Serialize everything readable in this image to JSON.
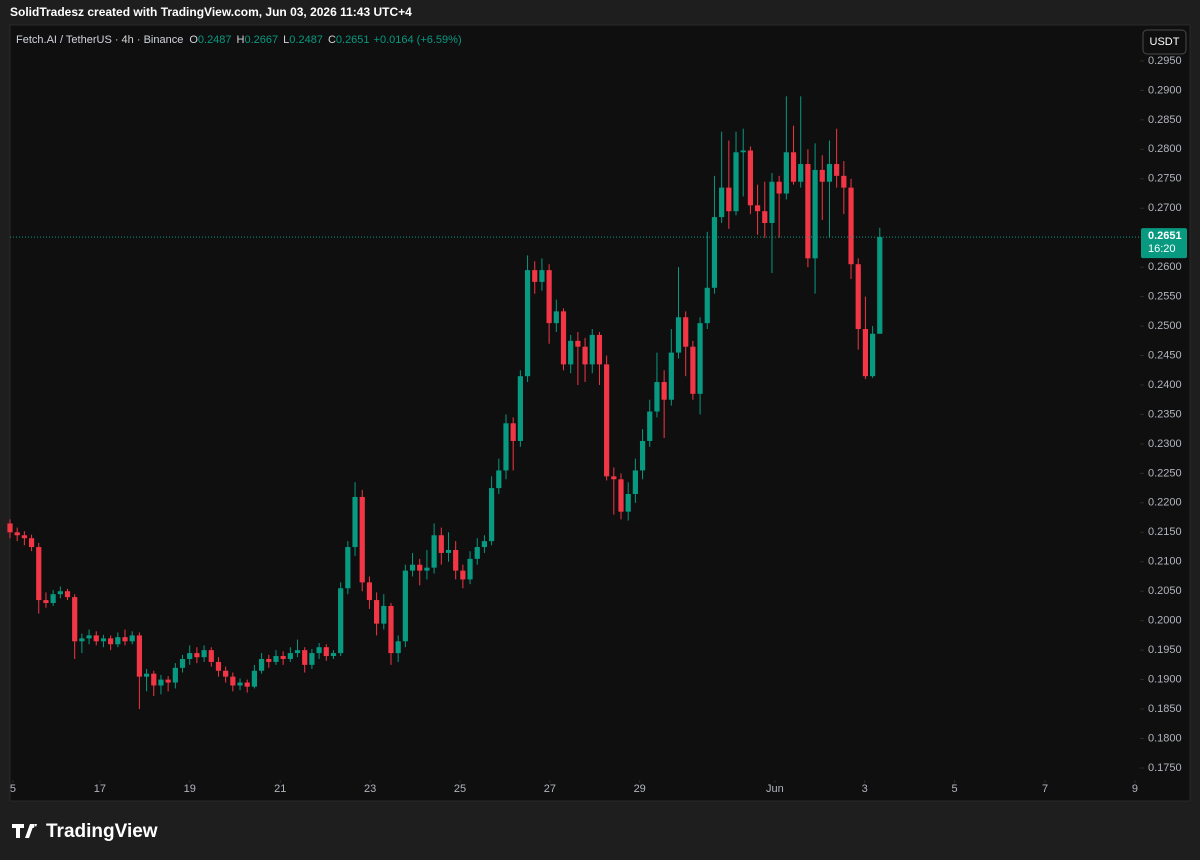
{
  "header": "SolidTradesz created with TradingView.com, Jun 03, 2026 11:43 UTC+4",
  "brand": "TradingView",
  "chart_data": {
    "type": "candlestick",
    "title": "Fetch.AI / TetherUS · 4h · Binance",
    "ohlc_legend": [
      {
        "key": "O",
        "value": 0.2487
      },
      {
        "key": "H",
        "value": 0.2667
      },
      {
        "key": "L",
        "value": 0.2487
      },
      {
        "key": "C",
        "value": 0.2651
      }
    ],
    "change": "+0.0164 (+6.59%)",
    "currency": "USDT",
    "last_price": 0.2651,
    "countdown": "16:20",
    "up_color": "#089981",
    "down_color": "#f23645",
    "open": [
      0.2165,
      0.215,
      0.2145,
      0.214,
      0.2125,
      0.2035,
      0.203,
      0.2045,
      0.205,
      0.204,
      0.1965,
      0.197,
      0.1975,
      0.1965,
      0.197,
      0.196,
      0.1972,
      0.1965,
      0.1975,
      0.1905,
      0.191,
      0.189,
      0.19,
      0.1895,
      0.192,
      0.1935,
      0.1945,
      0.1938,
      0.195,
      0.193,
      0.1915,
      0.1905,
      0.189,
      0.1895,
      0.1888,
      0.1915,
      0.1935,
      0.193,
      0.194,
      0.1935,
      0.1945,
      0.195,
      0.1925,
      0.1945,
      0.1955,
      0.194,
      0.1945,
      0.2055,
      0.2125,
      0.221,
      0.2065,
      0.2035,
      0.1995,
      0.2025,
      0.1945,
      0.1965,
      0.2085,
      0.2095,
      0.2085,
      0.209,
      0.2145,
      0.2115,
      0.212,
      0.2085,
      0.207,
      0.2105,
      0.2125,
      0.2135,
      0.2225,
      0.2255,
      0.2335,
      0.2305,
      0.2415,
      0.2595,
      0.2575,
      0.2595,
      0.2505,
      0.2525,
      0.2435,
      0.2475,
      0.2465,
      0.2435,
      0.2485,
      0.2435,
      0.2245,
      0.224,
      0.2185,
      0.2215,
      0.2255,
      0.2305,
      0.2355,
      0.2405,
      0.2375,
      0.2455,
      0.2515,
      0.2465,
      0.2385,
      0.2505,
      0.2565,
      0.2685,
      0.2735,
      0.2695,
      0.2795,
      0.2798,
      0.2705,
      0.2695,
      0.2675,
      0.2745,
      0.2725,
      0.2795,
      0.2745,
      0.2775,
      0.2615,
      0.2765,
      0.2745,
      0.2775,
      0.2755,
      0.2735,
      0.2605,
      0.2495,
      0.2415,
      0.2487
    ],
    "high": [
      0.2172,
      0.2158,
      0.2152,
      0.2146,
      0.2132,
      0.2048,
      0.2052,
      0.2058,
      0.2054,
      0.2045,
      0.1978,
      0.1985,
      0.1982,
      0.1976,
      0.1975,
      0.198,
      0.1985,
      0.1982,
      0.198,
      0.1918,
      0.1915,
      0.1908,
      0.1906,
      0.1928,
      0.1942,
      0.1958,
      0.1955,
      0.1958,
      0.1955,
      0.1938,
      0.1922,
      0.1912,
      0.1902,
      0.19,
      0.1925,
      0.1945,
      0.1942,
      0.195,
      0.1948,
      0.1955,
      0.1968,
      0.1955,
      0.1952,
      0.1962,
      0.196,
      0.195,
      0.2065,
      0.2135,
      0.2235,
      0.2222,
      0.2075,
      0.2048,
      0.2045,
      0.203,
      0.1975,
      0.2095,
      0.2115,
      0.2105,
      0.212,
      0.2165,
      0.2158,
      0.215,
      0.2135,
      0.2095,
      0.2118,
      0.214,
      0.2145,
      0.2245,
      0.2275,
      0.235,
      0.2345,
      0.2425,
      0.262,
      0.261,
      0.2615,
      0.2605,
      0.2545,
      0.253,
      0.2485,
      0.249,
      0.248,
      0.2495,
      0.249,
      0.245,
      0.226,
      0.225,
      0.2235,
      0.2275,
      0.2325,
      0.2375,
      0.2455,
      0.2425,
      0.2495,
      0.26,
      0.2525,
      0.2475,
      0.2515,
      0.266,
      0.2755,
      0.283,
      0.2815,
      0.283,
      0.2835,
      0.2805,
      0.274,
      0.2745,
      0.276,
      0.2755,
      0.289,
      0.284,
      0.289,
      0.28,
      0.281,
      0.279,
      0.2815,
      0.2835,
      0.278,
      0.275,
      0.2615,
      0.255,
      0.25,
      0.2667
    ],
    "low": [
      0.214,
      0.2135,
      0.2128,
      0.2118,
      0.2012,
      0.2022,
      0.2025,
      0.2038,
      0.2035,
      0.1935,
      0.1945,
      0.196,
      0.1958,
      0.1955,
      0.195,
      0.1955,
      0.1958,
      0.196,
      0.185,
      0.188,
      0.1872,
      0.1875,
      0.188,
      0.1885,
      0.1912,
      0.1925,
      0.1928,
      0.193,
      0.1922,
      0.1905,
      0.1895,
      0.188,
      0.1882,
      0.1878,
      0.1885,
      0.191,
      0.192,
      0.1925,
      0.1925,
      0.193,
      0.1938,
      0.1912,
      0.1918,
      0.1935,
      0.1932,
      0.1935,
      0.194,
      0.2045,
      0.211,
      0.205,
      0.202,
      0.1975,
      0.1985,
      0.1925,
      0.193,
      0.1955,
      0.2075,
      0.206,
      0.207,
      0.208,
      0.2095,
      0.21,
      0.207,
      0.2055,
      0.2062,
      0.2095,
      0.2115,
      0.2128,
      0.2215,
      0.224,
      0.2255,
      0.2295,
      0.2405,
      0.2555,
      0.256,
      0.247,
      0.249,
      0.2425,
      0.242,
      0.24,
      0.2405,
      0.242,
      0.24,
      0.2238,
      0.218,
      0.2172,
      0.217,
      0.22,
      0.224,
      0.2295,
      0.2345,
      0.231,
      0.2365,
      0.2445,
      0.2415,
      0.2375,
      0.235,
      0.2495,
      0.2555,
      0.2675,
      0.2665,
      0.2688,
      0.272,
      0.269,
      0.2655,
      0.265,
      0.259,
      0.265,
      0.2715,
      0.274,
      0.2735,
      0.26,
      0.2555,
      0.268,
      0.265,
      0.2735,
      0.269,
      0.258,
      0.246,
      0.241,
      0.2412,
      0.2487
    ],
    "close": [
      0.215,
      0.2145,
      0.214,
      0.2125,
      0.2035,
      0.203,
      0.2045,
      0.205,
      0.204,
      0.1965,
      0.197,
      0.1975,
      0.1965,
      0.197,
      0.196,
      0.1972,
      0.1965,
      0.1975,
      0.1905,
      0.191,
      0.189,
      0.19,
      0.1895,
      0.192,
      0.1935,
      0.1945,
      0.1938,
      0.195,
      0.193,
      0.1915,
      0.1905,
      0.189,
      0.1895,
      0.1888,
      0.1915,
      0.1935,
      0.193,
      0.194,
      0.1935,
      0.1945,
      0.195,
      0.1925,
      0.1945,
      0.1955,
      0.194,
      0.1945,
      0.2055,
      0.2125,
      0.221,
      0.2065,
      0.2035,
      0.1995,
      0.2025,
      0.1945,
      0.1965,
      0.2085,
      0.2095,
      0.2085,
      0.209,
      0.2145,
      0.2115,
      0.212,
      0.2085,
      0.207,
      0.2105,
      0.2125,
      0.2135,
      0.2225,
      0.2255,
      0.2335,
      0.2305,
      0.2415,
      0.2595,
      0.2575,
      0.2595,
      0.2505,
      0.2525,
      0.2435,
      0.2475,
      0.2465,
      0.2435,
      0.2485,
      0.2435,
      0.2245,
      0.224,
      0.2185,
      0.2215,
      0.2255,
      0.2305,
      0.2355,
      0.2405,
      0.2375,
      0.2455,
      0.2515,
      0.2465,
      0.2385,
      0.2505,
      0.2565,
      0.2685,
      0.2735,
      0.2695,
      0.2795,
      0.2798,
      0.2705,
      0.2695,
      0.2675,
      0.2745,
      0.2725,
      0.2795,
      0.2745,
      0.2775,
      0.2615,
      0.2765,
      0.2745,
      0.2775,
      0.2755,
      0.2735,
      0.2605,
      0.2495,
      0.2415,
      0.2487,
      0.2651
    ],
    "xlim": [
      0,
      157.2
    ],
    "xticks": [
      {
        "value": 0.4,
        "label": "5"
      },
      {
        "value": 12.5,
        "label": "17"
      },
      {
        "value": 25.0,
        "label": "19"
      },
      {
        "value": 37.6,
        "label": "21"
      },
      {
        "value": 50.1,
        "label": "23"
      },
      {
        "value": 62.6,
        "label": "25"
      },
      {
        "value": 75.1,
        "label": "27"
      },
      {
        "value": 87.6,
        "label": "29"
      },
      {
        "value": 106.4,
        "label": "Jun"
      },
      {
        "value": 118.9,
        "label": "3"
      },
      {
        "value": 131.4,
        "label": "5"
      },
      {
        "value": 144.0,
        "label": "7"
      },
      {
        "value": 156.5,
        "label": "9"
      }
    ],
    "ylim": [
      0.1733,
      0.3011
    ],
    "yticks": [
      {
        "value": 0.175,
        "label": "0.1750"
      },
      {
        "value": 0.18,
        "label": "0.1800"
      },
      {
        "value": 0.185,
        "label": "0.1850"
      },
      {
        "value": 0.19,
        "label": "0.1900"
      },
      {
        "value": 0.195,
        "label": "0.1950"
      },
      {
        "value": 0.2,
        "label": "0.2000"
      },
      {
        "value": 0.205,
        "label": "0.2050"
      },
      {
        "value": 0.21,
        "label": "0.2100"
      },
      {
        "value": 0.215,
        "label": "0.2150"
      },
      {
        "value": 0.22,
        "label": "0.2200"
      },
      {
        "value": 0.225,
        "label": "0.2250"
      },
      {
        "value": 0.23,
        "label": "0.2300"
      },
      {
        "value": 0.235,
        "label": "0.2350"
      },
      {
        "value": 0.24,
        "label": "0.2400"
      },
      {
        "value": 0.245,
        "label": "0.2450"
      },
      {
        "value": 0.25,
        "label": "0.2500"
      },
      {
        "value": 0.255,
        "label": "0.2550"
      },
      {
        "value": 0.26,
        "label": "0.2600"
      },
      {
        "value": 0.265,
        "label": "0.2650"
      },
      {
        "value": 0.27,
        "label": "0.2700"
      },
      {
        "value": 0.275,
        "label": "0.2750"
      },
      {
        "value": 0.28,
        "label": "0.2800"
      },
      {
        "value": 0.285,
        "label": "0.2850"
      },
      {
        "value": 0.29,
        "label": "0.2900"
      },
      {
        "value": 0.295,
        "label": "0.2950"
      }
    ]
  }
}
